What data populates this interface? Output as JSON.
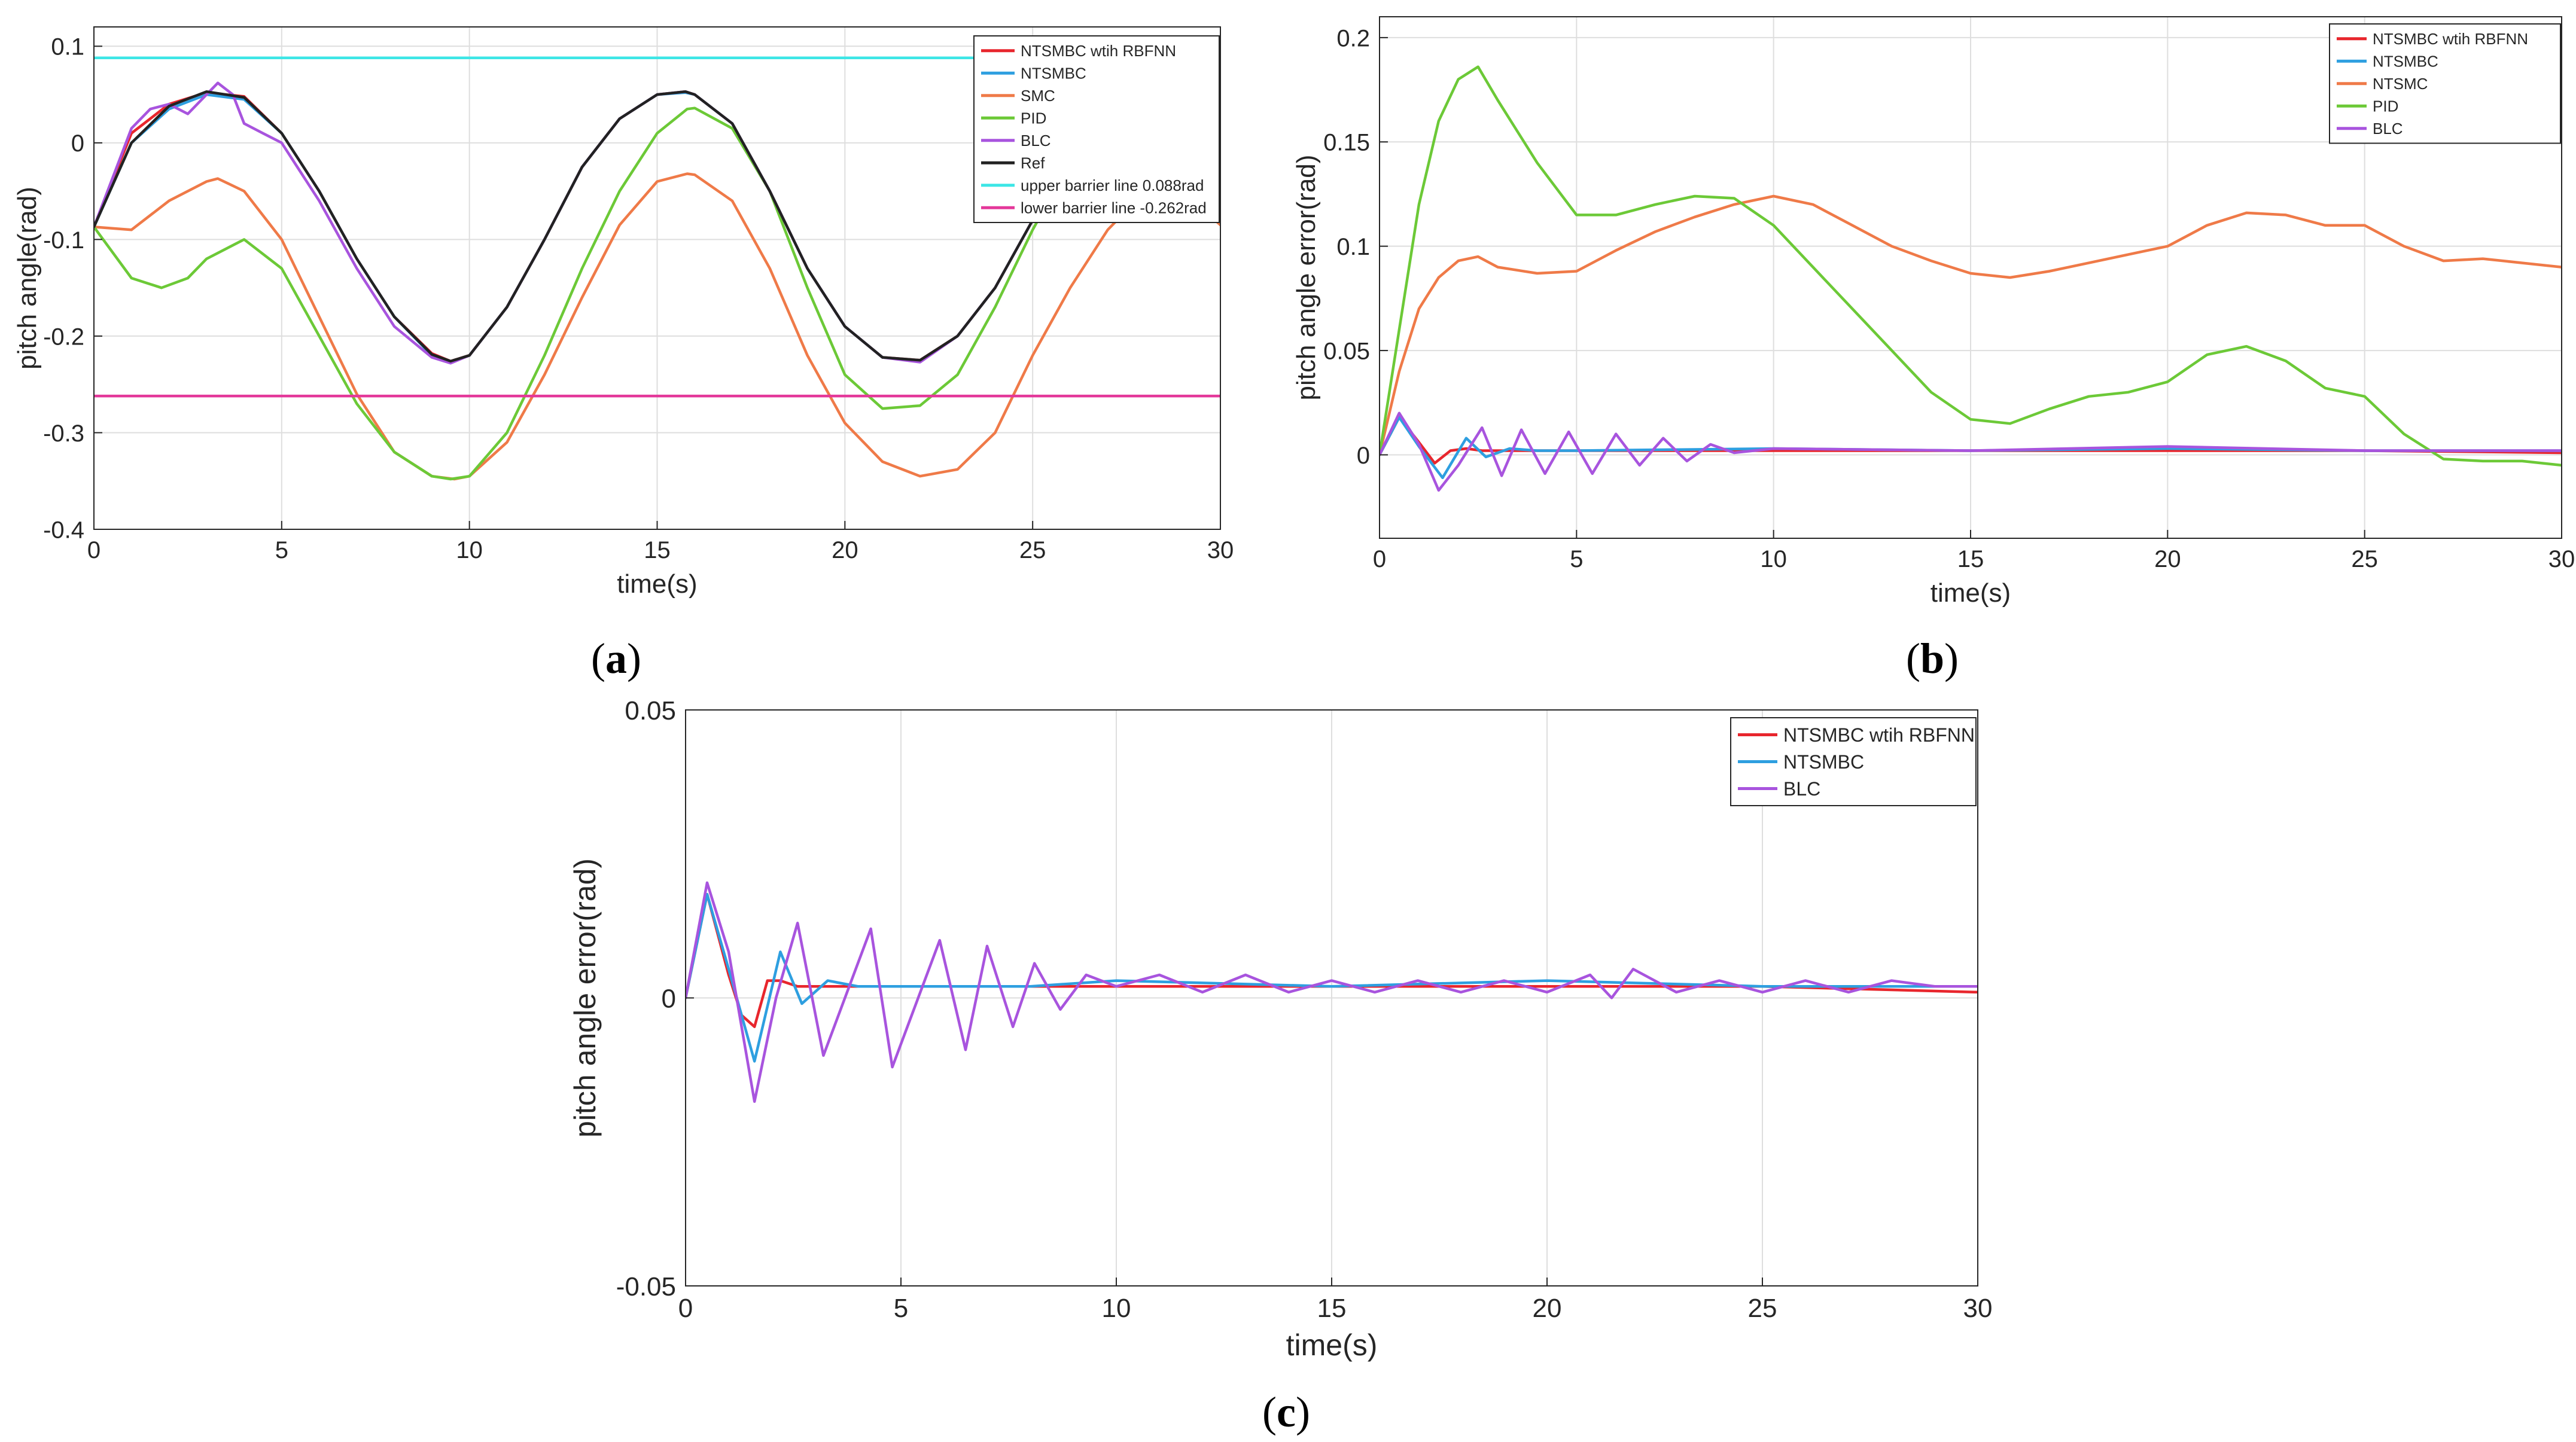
{
  "figure": {
    "labels": {
      "a": "a",
      "b": "b",
      "c": "c"
    }
  },
  "chart_data": [
    {
      "id": "a",
      "type": "line",
      "title": "",
      "xlabel": "time(s)",
      "ylabel": "pitch angle(rad)",
      "xlim": [
        0,
        30
      ],
      "ylim": [
        -0.4,
        0.12
      ],
      "xticks": [
        0,
        5,
        10,
        15,
        20,
        25,
        30
      ],
      "xtick_labels": [
        "0",
        "5",
        "10",
        "15",
        "20",
        "25",
        "30"
      ],
      "yticks": [
        -0.4,
        -0.3,
        -0.2,
        -0.1,
        0,
        0.1
      ],
      "ytick_labels": [
        "-0.4",
        "-0.3",
        "-0.2",
        "-0.1",
        "0",
        "0.1"
      ],
      "grid": true,
      "legend_position": "top-right",
      "series": [
        {
          "name": "NTSMBC wtih RBFNN",
          "color": "#e8262d",
          "x": [
            0,
            1,
            2,
            3,
            4,
            5,
            6,
            7,
            8,
            9,
            9.5,
            10,
            11,
            12,
            13,
            14,
            15,
            15.75,
            16,
            17,
            18,
            19,
            20,
            21,
            22,
            23,
            24,
            25,
            26,
            27,
            28,
            29,
            30
          ],
          "y": [
            -0.087,
            0.01,
            0.04,
            0.052,
            0.048,
            0.01,
            -0.05,
            -0.12,
            -0.18,
            -0.218,
            -0.226,
            -0.22,
            -0.17,
            -0.1,
            -0.025,
            0.025,
            0.05,
            0.053,
            0.05,
            0.02,
            -0.05,
            -0.13,
            -0.19,
            -0.222,
            -0.225,
            -0.2,
            -0.15,
            -0.08,
            -0.02,
            0.03,
            0.05,
            0.03,
            0.0
          ]
        },
        {
          "name": "NTSMBC",
          "color": "#2e9fe0",
          "x": [
            0,
            1,
            2,
            3,
            4,
            5,
            6,
            7,
            8,
            9,
            9.5,
            10,
            11,
            12,
            13,
            14,
            15,
            15.75,
            16,
            17,
            18,
            19,
            20,
            21,
            22,
            23,
            24,
            25,
            26,
            27,
            28,
            29,
            30
          ],
          "y": [
            -0.087,
            0.0,
            0.035,
            0.05,
            0.045,
            0.01,
            -0.05,
            -0.12,
            -0.18,
            -0.22,
            -0.227,
            -0.22,
            -0.17,
            -0.1,
            -0.025,
            0.025,
            0.05,
            0.052,
            0.05,
            0.02,
            -0.05,
            -0.13,
            -0.19,
            -0.222,
            -0.226,
            -0.2,
            -0.15,
            -0.08,
            -0.02,
            0.03,
            0.05,
            0.03,
            0.0
          ]
        },
        {
          "name": "SMC",
          "color": "#ef7a48",
          "x": [
            0,
            1,
            2,
            3,
            3.3,
            4,
            5,
            6,
            7,
            8,
            9,
            9.6,
            10,
            11,
            12,
            13,
            14,
            15,
            15.8,
            16,
            17,
            18,
            19,
            20,
            21,
            22,
            23,
            24,
            25,
            26,
            27,
            28,
            29,
            30
          ],
          "y": [
            -0.087,
            -0.09,
            -0.06,
            -0.04,
            -0.037,
            -0.05,
            -0.1,
            -0.18,
            -0.26,
            -0.32,
            -0.345,
            -0.348,
            -0.345,
            -0.31,
            -0.24,
            -0.16,
            -0.085,
            -0.04,
            -0.032,
            -0.033,
            -0.06,
            -0.13,
            -0.22,
            -0.29,
            -0.33,
            -0.345,
            -0.338,
            -0.3,
            -0.22,
            -0.15,
            -0.09,
            -0.05,
            -0.05,
            -0.085
          ]
        },
        {
          "name": "PID",
          "color": "#6cc937",
          "x": [
            0,
            1,
            1.8,
            2.5,
            3,
            4,
            5,
            6,
            7,
            8,
            9,
            9.5,
            10,
            11,
            12,
            13,
            14,
            15,
            15.8,
            16,
            17,
            18,
            19,
            20,
            21,
            22,
            23,
            24,
            25,
            26,
            27,
            28,
            29,
            30
          ],
          "y": [
            -0.087,
            -0.14,
            -0.15,
            -0.14,
            -0.12,
            -0.1,
            -0.13,
            -0.2,
            -0.27,
            -0.32,
            -0.345,
            -0.348,
            -0.345,
            -0.3,
            -0.22,
            -0.13,
            -0.05,
            0.01,
            0.035,
            0.036,
            0.015,
            -0.05,
            -0.15,
            -0.24,
            -0.275,
            -0.272,
            -0.24,
            -0.17,
            -0.09,
            -0.02,
            0.03,
            0.05,
            0.04,
            0.01
          ]
        },
        {
          "name": "BLC",
          "color": "#a854de",
          "x": [
            0,
            1,
            1.5,
            2,
            2.5,
            3,
            3.3,
            3.7,
            4,
            4.5,
            5,
            6,
            7,
            8,
            9,
            9.5,
            10,
            11,
            12,
            13,
            14,
            15,
            15.75,
            16,
            17,
            18,
            19,
            20,
            21,
            22,
            23,
            24,
            25,
            26,
            27,
            28,
            29,
            30
          ],
          "y": [
            -0.087,
            0.015,
            0.035,
            0.04,
            0.03,
            0.05,
            0.062,
            0.05,
            0.02,
            0.01,
            0.0,
            -0.06,
            -0.13,
            -0.19,
            -0.222,
            -0.228,
            -0.22,
            -0.17,
            -0.1,
            -0.025,
            0.025,
            0.05,
            0.053,
            0.05,
            0.02,
            -0.05,
            -0.13,
            -0.19,
            -0.222,
            -0.227,
            -0.2,
            -0.15,
            -0.08,
            -0.02,
            0.03,
            0.05,
            0.03,
            0.0
          ]
        },
        {
          "name": "Ref",
          "color": "#222222",
          "x": [
            0,
            1,
            2,
            3,
            4,
            5,
            6,
            7,
            8,
            9,
            9.5,
            10,
            11,
            12,
            13,
            14,
            15,
            15.75,
            16,
            17,
            18,
            19,
            20,
            21,
            22,
            23,
            24,
            25,
            26,
            27,
            28,
            29,
            30
          ],
          "y": [
            -0.087,
            0.0,
            0.038,
            0.053,
            0.047,
            0.01,
            -0.05,
            -0.12,
            -0.18,
            -0.219,
            -0.226,
            -0.22,
            -0.17,
            -0.1,
            -0.025,
            0.025,
            0.05,
            0.053,
            0.05,
            0.02,
            -0.05,
            -0.13,
            -0.19,
            -0.222,
            -0.225,
            -0.2,
            -0.15,
            -0.08,
            -0.02,
            0.03,
            0.05,
            0.03,
            0.0
          ]
        },
        {
          "name": "upper barrier line 0.088rad",
          "color": "#3de6e6",
          "x": [
            0,
            30
          ],
          "y": [
            0.088,
            0.088
          ]
        },
        {
          "name": "lower barrier line -0.262rad",
          "color": "#e4389a",
          "x": [
            0,
            30
          ],
          "y": [
            -0.262,
            -0.262
          ]
        }
      ]
    },
    {
      "id": "b",
      "type": "line",
      "title": "",
      "xlabel": "time(s)",
      "ylabel": "pitch angle error(rad)",
      "xlim": [
        0,
        30
      ],
      "ylim": [
        -0.04,
        0.21
      ],
      "xticks": [
        0,
        5,
        10,
        15,
        20,
        25,
        30
      ],
      "xtick_labels": [
        "0",
        "5",
        "10",
        "15",
        "20",
        "25",
        "30"
      ],
      "yticks": [
        0,
        0.05,
        0.1,
        0.15,
        0.2
      ],
      "ytick_labels": [
        "0",
        "0.05",
        "0.1",
        "0.15",
        "0.2"
      ],
      "grid": true,
      "legend_position": "top-right",
      "series": [
        {
          "name": "NTSMBC wtih RBFNN",
          "color": "#e8262d",
          "x": [
            0,
            0.5,
            1,
            1.4,
            1.8,
            2.2,
            2.6,
            3,
            5,
            10,
            15,
            20,
            25,
            30
          ],
          "y": [
            0,
            0.018,
            0.006,
            -0.004,
            0.002,
            0.003,
            0.002,
            0.002,
            0.002,
            0.002,
            0.002,
            0.002,
            0.002,
            0.001
          ]
        },
        {
          "name": "NTSMBC",
          "color": "#2e9fe0",
          "x": [
            0,
            0.5,
            1,
            1.6,
            2.2,
            2.7,
            3.3,
            4,
            5,
            10,
            15,
            20,
            25,
            30
          ],
          "y": [
            0,
            0.018,
            0.004,
            -0.011,
            0.008,
            -0.001,
            0.003,
            0.002,
            0.002,
            0.003,
            0.002,
            0.003,
            0.002,
            0.002
          ]
        },
        {
          "name": "NTSMC",
          "color": "#ef7a48",
          "x": [
            0,
            0.5,
            1,
            1.5,
            2,
            2.5,
            3,
            4,
            5,
            6,
            7,
            8,
            9,
            10,
            11,
            12,
            13,
            14,
            15,
            16,
            17,
            18,
            19,
            20,
            21,
            22,
            23,
            24,
            25,
            26,
            27,
            28,
            29,
            30
          ],
          "y": [
            0,
            0.04,
            0.07,
            0.085,
            0.093,
            0.095,
            0.09,
            0.087,
            0.088,
            0.098,
            0.107,
            0.114,
            0.12,
            0.124,
            0.12,
            0.11,
            0.1,
            0.093,
            0.087,
            0.085,
            0.088,
            0.092,
            0.096,
            0.1,
            0.11,
            0.116,
            0.115,
            0.11,
            0.11,
            0.1,
            0.093,
            0.094,
            0.092,
            0.09
          ]
        },
        {
          "name": "PID",
          "color": "#6cc937",
          "x": [
            0,
            0.5,
            1,
            1.5,
            2,
            2.5,
            3,
            4,
            5,
            6,
            7,
            8,
            9,
            10,
            11,
            12,
            13,
            14,
            15,
            16,
            17,
            18,
            19,
            20,
            21,
            22,
            23,
            24,
            25,
            26,
            27,
            28,
            29,
            30
          ],
          "y": [
            0,
            0.06,
            0.12,
            0.16,
            0.18,
            0.186,
            0.17,
            0.14,
            0.115,
            0.115,
            0.12,
            0.124,
            0.123,
            0.11,
            0.09,
            0.07,
            0.05,
            0.03,
            0.017,
            0.015,
            0.022,
            0.028,
            0.03,
            0.035,
            0.048,
            0.052,
            0.045,
            0.032,
            0.028,
            0.01,
            -0.002,
            -0.003,
            -0.003,
            -0.005
          ]
        },
        {
          "name": "BLC",
          "color": "#a854de",
          "x": [
            0,
            0.5,
            1,
            1.5,
            2,
            2.6,
            3.1,
            3.6,
            4.2,
            4.8,
            5.4,
            6,
            6.6,
            7.2,
            7.8,
            8.4,
            9,
            10,
            15,
            20,
            25,
            30
          ],
          "y": [
            0,
            0.02,
            0.005,
            -0.017,
            -0.005,
            0.013,
            -0.01,
            0.012,
            -0.009,
            0.011,
            -0.009,
            0.01,
            -0.005,
            0.008,
            -0.003,
            0.005,
            0.001,
            0.003,
            0.002,
            0.004,
            0.002,
            0.002
          ]
        }
      ]
    },
    {
      "id": "c",
      "type": "line",
      "title": "",
      "xlabel": "time(s)",
      "ylabel": "pitch angle error(rad)",
      "xlim": [
        0,
        30
      ],
      "ylim": [
        -0.05,
        0.05
      ],
      "xticks": [
        0,
        5,
        10,
        15,
        20,
        25,
        30
      ],
      "xtick_labels": [
        "0",
        "5",
        "10",
        "15",
        "20",
        "25",
        "30"
      ],
      "yticks": [
        -0.05,
        0,
        0.05
      ],
      "ytick_labels": [
        "-0.05",
        "0",
        "0.05"
      ],
      "grid": true,
      "legend_position": "top-right",
      "series": [
        {
          "name": "NTSMBC wtih RBFNN",
          "color": "#e8262d",
          "x": [
            0,
            0.5,
            1,
            1.3,
            1.6,
            1.9,
            2.2,
            2.6,
            3,
            5,
            8,
            10,
            15,
            20,
            25,
            30
          ],
          "y": [
            0,
            0.018,
            0.004,
            -0.003,
            -0.005,
            0.003,
            0.003,
            0.002,
            0.002,
            0.002,
            0.002,
            0.002,
            0.002,
            0.002,
            0.002,
            0.001
          ]
        },
        {
          "name": "NTSMBC",
          "color": "#2e9fe0",
          "x": [
            0,
            0.5,
            1,
            1.6,
            2.2,
            2.7,
            3.3,
            4,
            5,
            8,
            10,
            15,
            20,
            25,
            30
          ],
          "y": [
            0,
            0.018,
            0.005,
            -0.011,
            0.008,
            -0.001,
            0.003,
            0.002,
            0.002,
            0.002,
            0.003,
            0.002,
            0.003,
            0.002,
            0.002
          ]
        },
        {
          "name": "BLC",
          "color": "#a854de",
          "x": [
            0,
            0.5,
            1,
            1.6,
            2.1,
            2.6,
            3.2,
            3.7,
            4.3,
            4.8,
            5.4,
            5.9,
            6.5,
            7,
            7.6,
            8.1,
            8.7,
            9.3,
            10,
            11,
            12,
            13,
            14,
            15,
            16,
            17,
            18,
            19,
            20,
            21,
            21.5,
            22,
            23,
            24,
            25,
            26,
            27,
            28,
            29,
            30
          ],
          "y": [
            0,
            0.02,
            0.008,
            -0.018,
            0.0,
            0.013,
            -0.01,
            0.0,
            0.012,
            -0.012,
            0.0,
            0.01,
            -0.009,
            0.009,
            -0.005,
            0.006,
            -0.002,
            0.004,
            0.002,
            0.004,
            0.001,
            0.004,
            0.001,
            0.003,
            0.001,
            0.003,
            0.001,
            0.003,
            0.001,
            0.004,
            0.0,
            0.005,
            0.001,
            0.003,
            0.001,
            0.003,
            0.001,
            0.003,
            0.002,
            0.002
          ]
        }
      ]
    }
  ]
}
